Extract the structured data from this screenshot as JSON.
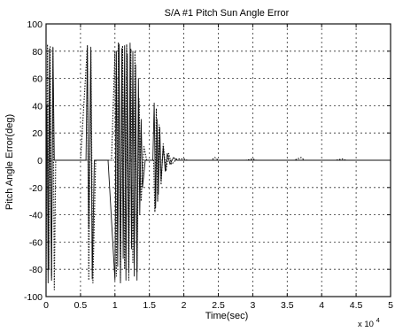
{
  "chart_data": {
    "type": "line",
    "title": "S/A #1 Pitch Sun Angle Error",
    "xlabel": "Time(sec)",
    "ylabel": "Pitch Angle Error(deg)",
    "x_multiplier_label": "x 10",
    "x_multiplier_exponent": "4",
    "xlim": [
      0,
      5
    ],
    "ylim": [
      -100,
      100
    ],
    "x_ticks": [
      0,
      0.5,
      1,
      1.5,
      2,
      2.5,
      3,
      3.5,
      4,
      4.5,
      5
    ],
    "x_tick_labels": [
      "0",
      "0.5",
      "1",
      "1.5",
      "2",
      "2.5",
      "3",
      "3.5",
      "4",
      "4.5",
      "5"
    ],
    "y_ticks": [
      -100,
      -80,
      -60,
      -40,
      -20,
      0,
      20,
      40,
      60,
      80,
      100
    ],
    "y_tick_labels": [
      "-100",
      "-80",
      "-60",
      "-40",
      "-20",
      "0",
      "20",
      "40",
      "60",
      "80",
      "100"
    ],
    "grid": true,
    "series": [
      {
        "style": "solid",
        "points": [
          [
            0,
            -80
          ],
          [
            0.01,
            40
          ],
          [
            0.02,
            0
          ],
          [
            0.03,
            -90
          ],
          [
            0.05,
            82
          ],
          [
            0.06,
            0
          ],
          [
            0.08,
            -85
          ],
          [
            0.1,
            83
          ],
          [
            0.12,
            0
          ],
          [
            0.15,
            0
          ],
          [
            0.2,
            0
          ],
          [
            0.5,
            0
          ],
          [
            0.58,
            0
          ],
          [
            0.6,
            82
          ],
          [
            0.62,
            -50
          ],
          [
            0.65,
            83
          ],
          [
            0.67,
            -87
          ],
          [
            0.7,
            0
          ],
          [
            0.9,
            0
          ],
          [
            1.0,
            -88
          ],
          [
            1.02,
            80
          ],
          [
            1.04,
            -78
          ],
          [
            1.06,
            85
          ],
          [
            1.08,
            -90
          ],
          [
            1.1,
            82
          ],
          [
            1.12,
            -72
          ],
          [
            1.14,
            84
          ],
          [
            1.16,
            -88
          ],
          [
            1.18,
            78
          ],
          [
            1.2,
            -82
          ],
          [
            1.22,
            86
          ],
          [
            1.24,
            -65
          ],
          [
            1.26,
            80
          ],
          [
            1.28,
            -85
          ],
          [
            1.3,
            70
          ],
          [
            1.32,
            -88
          ],
          [
            1.34,
            60
          ],
          [
            1.36,
            -40
          ],
          [
            1.38,
            30
          ],
          [
            1.4,
            -20
          ],
          [
            1.44,
            0
          ],
          [
            1.55,
            0
          ],
          [
            1.57,
            42
          ],
          [
            1.59,
            -35
          ],
          [
            1.61,
            30
          ],
          [
            1.63,
            -25
          ],
          [
            1.65,
            24
          ],
          [
            1.67,
            -15
          ],
          [
            1.7,
            10
          ],
          [
            1.73,
            -8
          ],
          [
            1.76,
            5
          ],
          [
            1.8,
            -3
          ],
          [
            1.85,
            2
          ],
          [
            1.9,
            0
          ],
          [
            2.0,
            0
          ],
          [
            2.5,
            0
          ],
          [
            3.0,
            0
          ],
          [
            3.5,
            0
          ],
          [
            4.0,
            0
          ],
          [
            4.5,
            0
          ],
          [
            5.0,
            0
          ]
        ]
      },
      {
        "style": "dotted",
        "points": [
          [
            0,
            -90
          ],
          [
            0.02,
            85
          ],
          [
            0.04,
            -80
          ],
          [
            0.06,
            84
          ],
          [
            0.08,
            -88
          ],
          [
            0.1,
            82
          ],
          [
            0.12,
            -95
          ],
          [
            0.14,
            0
          ],
          [
            0.5,
            0
          ],
          [
            0.6,
            84
          ],
          [
            0.62,
            -88
          ],
          [
            0.65,
            80
          ],
          [
            0.68,
            -90
          ],
          [
            0.72,
            0
          ],
          [
            0.95,
            0
          ],
          [
            1.0,
            80
          ],
          [
            1.02,
            -85
          ],
          [
            1.05,
            86
          ],
          [
            1.08,
            -88
          ],
          [
            1.11,
            84
          ],
          [
            1.14,
            -80
          ],
          [
            1.17,
            85
          ],
          [
            1.2,
            -88
          ],
          [
            1.23,
            82
          ],
          [
            1.26,
            -75
          ],
          [
            1.29,
            80
          ],
          [
            1.32,
            -82
          ],
          [
            1.35,
            45
          ],
          [
            1.38,
            -30
          ],
          [
            1.42,
            10
          ],
          [
            1.46,
            0
          ],
          [
            1.56,
            0
          ],
          [
            1.58,
            -38
          ],
          [
            1.6,
            38
          ],
          [
            1.62,
            -30
          ],
          [
            1.64,
            26
          ],
          [
            1.67,
            -18
          ],
          [
            1.7,
            12
          ],
          [
            1.74,
            -8
          ],
          [
            1.78,
            5
          ],
          [
            1.82,
            -3
          ],
          [
            1.9,
            1
          ],
          [
            2.0,
            1
          ],
          [
            2.05,
            0
          ],
          [
            2.1,
            0
          ],
          [
            2.4,
            0
          ],
          [
            2.45,
            2
          ],
          [
            2.5,
            0
          ],
          [
            2.9,
            0
          ],
          [
            3.0,
            1
          ],
          [
            3.05,
            0
          ],
          [
            3.6,
            0
          ],
          [
            3.7,
            2
          ],
          [
            3.75,
            0
          ],
          [
            4.2,
            0
          ],
          [
            4.3,
            1
          ],
          [
            4.35,
            0
          ],
          [
            5.0,
            0
          ]
        ]
      }
    ]
  }
}
